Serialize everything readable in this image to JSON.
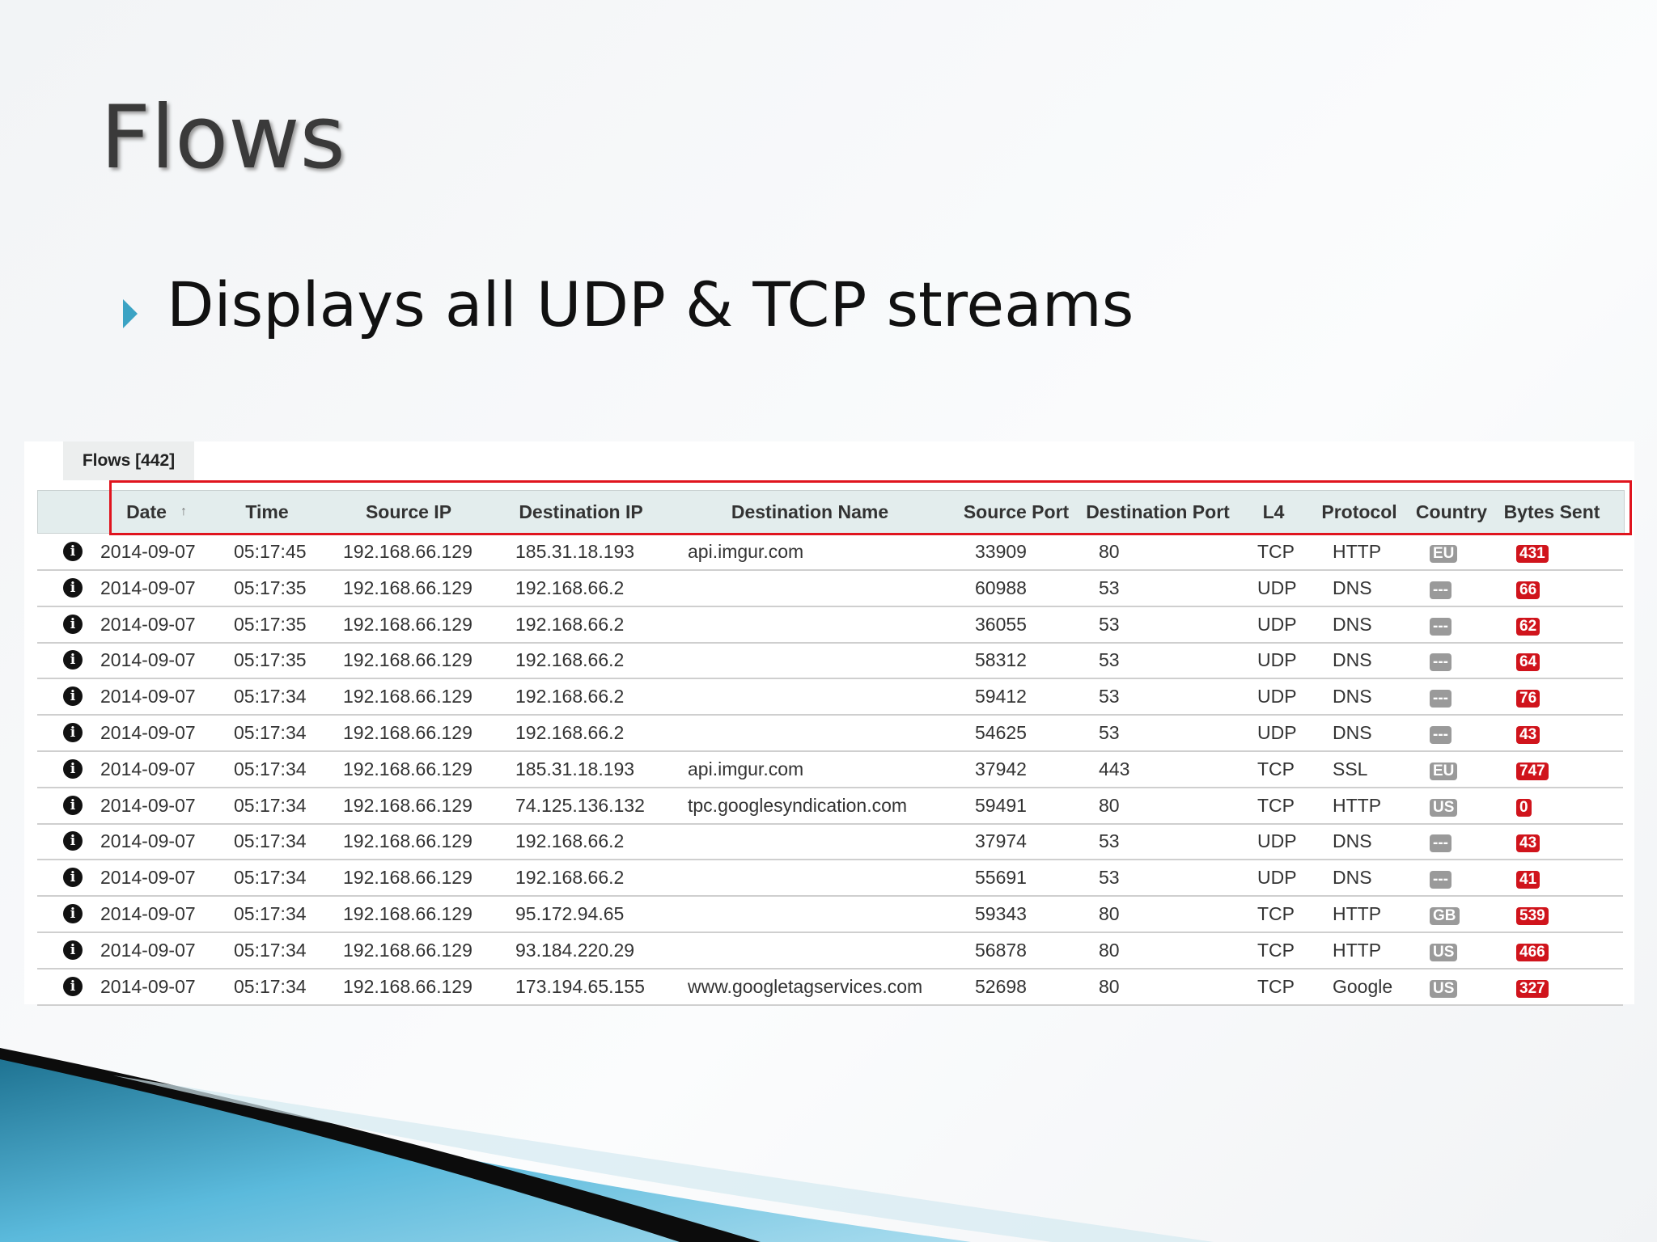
{
  "title": "Flows",
  "bullet": "Displays all UDP & TCP streams",
  "panel": {
    "tab": "Flows [442]",
    "table": {
      "columns": [
        "Date",
        "Time",
        "Source IP",
        "Destination IP",
        "Destination Name",
        "Source Port",
        "Destination Port",
        "L4",
        "Protocol",
        "Country",
        "Bytes Sent"
      ],
      "rows": [
        [
          "2014-09-07",
          "05:17:45",
          "192.168.66.129",
          "185.31.18.193",
          "api.imgur.com",
          33909,
          80,
          "TCP",
          "HTTP",
          "EU",
          431
        ],
        [
          "2014-09-07",
          "05:17:35",
          "192.168.66.129",
          "192.168.66.2",
          null,
          60988,
          53,
          "UDP",
          "DNS",
          "---",
          66
        ],
        [
          "2014-09-07",
          "05:17:35",
          "192.168.66.129",
          "192.168.66.2",
          null,
          36055,
          53,
          "UDP",
          "DNS",
          "---",
          62
        ],
        [
          "2014-09-07",
          "05:17:35",
          "192.168.66.129",
          "192.168.66.2",
          null,
          58312,
          53,
          "UDP",
          "DNS",
          "---",
          64
        ],
        [
          "2014-09-07",
          "05:17:34",
          "192.168.66.129",
          "192.168.66.2",
          null,
          59412,
          53,
          "UDP",
          "DNS",
          "---",
          76
        ],
        [
          "2014-09-07",
          "05:17:34",
          "192.168.66.129",
          "192.168.66.2",
          null,
          54625,
          53,
          "UDP",
          "DNS",
          "---",
          43
        ],
        [
          "2014-09-07",
          "05:17:34",
          "192.168.66.129",
          "185.31.18.193",
          "api.imgur.com",
          37942,
          443,
          "TCP",
          "SSL",
          "EU",
          747
        ],
        [
          "2014-09-07",
          "05:17:34",
          "192.168.66.129",
          "74.125.136.132",
          "tpc.googlesyndication.com",
          59491,
          80,
          "TCP",
          "HTTP",
          "US",
          0
        ],
        [
          "2014-09-07",
          "05:17:34",
          "192.168.66.129",
          "192.168.66.2",
          null,
          37974,
          53,
          "UDP",
          "DNS",
          "---",
          43
        ],
        [
          "2014-09-07",
          "05:17:34",
          "192.168.66.129",
          "192.168.66.2",
          null,
          55691,
          53,
          "UDP",
          "DNS",
          "---",
          41
        ],
        [
          "2014-09-07",
          "05:17:34",
          "192.168.66.129",
          "95.172.94.65",
          null,
          59343,
          80,
          "TCP",
          "HTTP",
          "GB",
          539
        ],
        [
          "2014-09-07",
          "05:17:34",
          "192.168.66.129",
          "93.184.220.29",
          null,
          56878,
          80,
          "TCP",
          "HTTP",
          "US",
          466
        ],
        [
          "2014-09-07",
          "05:17:34",
          "192.168.66.129",
          "173.194.65.155",
          "www.googletagservices.com",
          52698,
          80,
          "TCP",
          "Google",
          "US",
          327
        ]
      ]
    }
  }
}
